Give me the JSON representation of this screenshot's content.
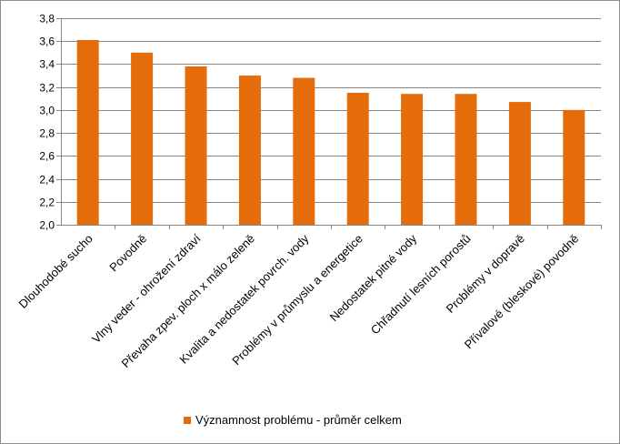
{
  "chart_data": {
    "type": "bar",
    "categories": [
      "Dlouhodobé sucho",
      "Povodně",
      "Vlny veder  - ohrožení zdraví",
      "Převaha zpev. ploch x málo zeleně",
      "Kvalita a nedostatek povrch. vody",
      "Problémy v průmyslu a energetice",
      "Nedostatek pitné vody",
      "Chřadnutí lesních porostů",
      "Problémy v dopravě",
      "Přívalové (bleskové) povodně"
    ],
    "series": [
      {
        "name": "Významnost problému - průměr celkem",
        "values": [
          3.61,
          3.5,
          3.38,
          3.3,
          3.28,
          3.15,
          3.14,
          3.14,
          3.07,
          3.0
        ],
        "color": "#E46C0A"
      }
    ],
    "y_ticks": [
      "2,0",
      "2,2",
      "2,4",
      "2,6",
      "2,8",
      "3,0",
      "3,2",
      "3,4",
      "3,6",
      "3,8"
    ],
    "ylim": [
      2.0,
      3.8
    ],
    "grid": true,
    "gridline_color": "#868686",
    "legend_position": "bottom"
  }
}
